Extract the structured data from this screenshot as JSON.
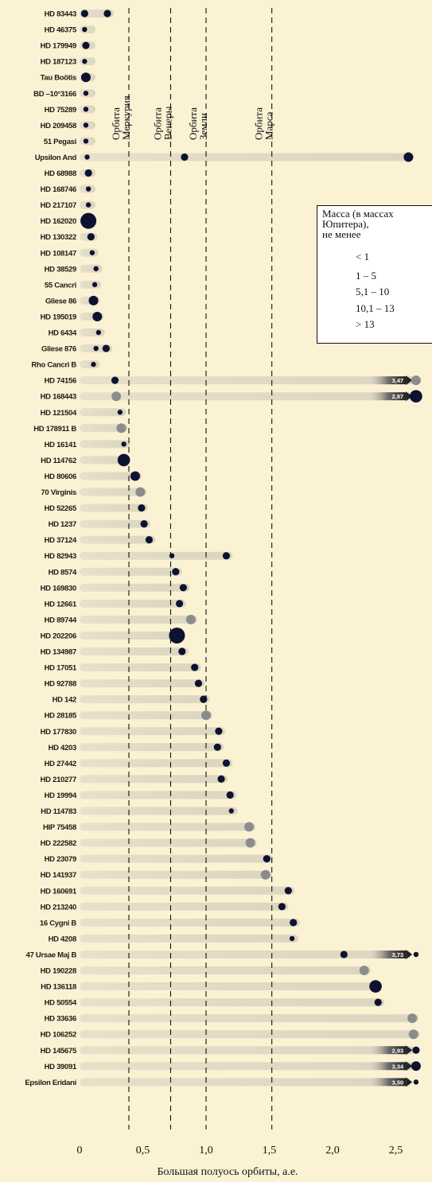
{
  "chart_data": {
    "type": "scatter",
    "xlabel": "Большая полуось орбиты, а.е.",
    "xlim": [
      0,
      2.7
    ],
    "xticks": [
      "0",
      "0,5",
      "1,0",
      "1,5",
      "2,0",
      "2,5"
    ],
    "xtick_values": [
      0,
      0.5,
      1.0,
      1.5,
      2.0,
      2.5
    ],
    "grid": false,
    "legend_position": "right",
    "colors": {
      "background": "#fbf2d4",
      "dark_point": "#0d1230",
      "gray_point": "#8c8c8c",
      "band": "#d8d2c0"
    },
    "orbits": [
      {
        "name": "Орбита Меркурия",
        "line1": "Орбита",
        "line2": "Меркурия",
        "x": 0.39
      },
      {
        "name": "Орбита Венеры",
        "line1": "Орбита",
        "line2": "Венеры",
        "x": 0.72
      },
      {
        "name": "Орбита Земли",
        "line1": "Орбита",
        "line2": "Земли",
        "x": 1.0
      },
      {
        "name": "Орбита Марса",
        "line1": "Орбита",
        "line2": "Марса",
        "x": 1.52
      }
    ],
    "legend": {
      "title": "Масса (в массах Юпитера), не менее",
      "title_line1": "Масса (в массах",
      "title_line2": "Юпитера),",
      "title_line3": "не менее",
      "items": [
        "< 1",
        "1 – 5",
        "5,1 – 10",
        "10,1 – 13",
        "> 13"
      ]
    },
    "stars": [
      {
        "name": "HD 83443",
        "planets": [
          {
            "a": 0.04,
            "m": 1,
            "c": "d"
          },
          {
            "a": 0.22,
            "m": 1,
            "c": "d"
          }
        ]
      },
      {
        "name": "HD 46375",
        "planets": [
          {
            "a": 0.04,
            "m": 0,
            "c": "d"
          }
        ]
      },
      {
        "name": "HD 179949",
        "planets": [
          {
            "a": 0.05,
            "m": 1,
            "c": "d"
          }
        ]
      },
      {
        "name": "HD 187123",
        "planets": [
          {
            "a": 0.04,
            "m": 0,
            "c": "d"
          }
        ]
      },
      {
        "name": "Tau Boötis",
        "planets": [
          {
            "a": 0.05,
            "m": 2,
            "c": "d"
          }
        ]
      },
      {
        "name": "BD –10°3166",
        "planets": [
          {
            "a": 0.05,
            "m": 0,
            "c": "d"
          }
        ]
      },
      {
        "name": "HD 75289",
        "planets": [
          {
            "a": 0.05,
            "m": 0,
            "c": "d"
          }
        ]
      },
      {
        "name": "HD 209458",
        "planets": [
          {
            "a": 0.05,
            "m": 0,
            "c": "d"
          }
        ]
      },
      {
        "name": "51 Pegasi",
        "planets": [
          {
            "a": 0.05,
            "m": 0,
            "c": "d"
          }
        ]
      },
      {
        "name": "Upsilon And",
        "band": 2.6,
        "planets": [
          {
            "a": 0.06,
            "m": 0,
            "c": "d"
          },
          {
            "a": 0.83,
            "m": 1,
            "c": "d"
          },
          {
            "a": 2.6,
            "m": 2,
            "c": "d"
          }
        ]
      },
      {
        "name": "HD 68988",
        "planets": [
          {
            "a": 0.07,
            "m": 1,
            "c": "d"
          }
        ]
      },
      {
        "name": "HD 168746",
        "planets": [
          {
            "a": 0.07,
            "m": 0,
            "c": "d"
          }
        ]
      },
      {
        "name": "HD 217107",
        "planets": [
          {
            "a": 0.07,
            "m": 0,
            "c": "d"
          }
        ]
      },
      {
        "name": "HD 162020",
        "planets": [
          {
            "a": 0.07,
            "m": 4,
            "c": "d"
          }
        ]
      },
      {
        "name": "HD 130322",
        "planets": [
          {
            "a": 0.09,
            "m": 1,
            "c": "d"
          }
        ]
      },
      {
        "name": "HD 108147",
        "planets": [
          {
            "a": 0.1,
            "m": 0,
            "c": "d"
          }
        ]
      },
      {
        "name": "HD 38529",
        "planets": [
          {
            "a": 0.13,
            "m": 0,
            "c": "d"
          }
        ]
      },
      {
        "name": "55 Cancri",
        "planets": [
          {
            "a": 0.12,
            "m": 0,
            "c": "d"
          }
        ]
      },
      {
        "name": "Gliese 86",
        "planets": [
          {
            "a": 0.11,
            "m": 2,
            "c": "d"
          }
        ]
      },
      {
        "name": "HD 195019",
        "planets": [
          {
            "a": 0.14,
            "m": 2,
            "c": "d"
          }
        ]
      },
      {
        "name": "HD 6434",
        "planets": [
          {
            "a": 0.15,
            "m": 0,
            "c": "d"
          }
        ]
      },
      {
        "name": "Gliese 876",
        "planets": [
          {
            "a": 0.13,
            "m": 0,
            "c": "d"
          },
          {
            "a": 0.21,
            "m": 1,
            "c": "d"
          }
        ]
      },
      {
        "name": "Rho Cancri B",
        "planets": [
          {
            "a": 0.11,
            "m": 0,
            "c": "d"
          }
        ]
      },
      {
        "name": "HD 74156",
        "band": 2.66,
        "arrow": "3,47",
        "planets": [
          {
            "a": 0.28,
            "m": 1,
            "c": "d"
          },
          {
            "a": 2.66,
            "m": 2,
            "c": "g"
          }
        ]
      },
      {
        "name": "HD 168443",
        "band": 2.66,
        "arrow": "2,87",
        "planets": [
          {
            "a": 0.29,
            "m": 2,
            "c": "g"
          },
          {
            "a": 2.66,
            "m": 3,
            "c": "d"
          }
        ]
      },
      {
        "name": "HD 121504",
        "planets": [
          {
            "a": 0.32,
            "m": 0,
            "c": "d"
          }
        ]
      },
      {
        "name": "HD 178911 B",
        "planets": [
          {
            "a": 0.33,
            "m": 2,
            "c": "g"
          }
        ]
      },
      {
        "name": "HD 16141",
        "planets": [
          {
            "a": 0.35,
            "m": 0,
            "c": "d"
          }
        ]
      },
      {
        "name": "HD 114762",
        "planets": [
          {
            "a": 0.35,
            "m": 3,
            "c": "d"
          }
        ]
      },
      {
        "name": "HD 80606",
        "planets": [
          {
            "a": 0.44,
            "m": 2,
            "c": "d"
          }
        ]
      },
      {
        "name": "70 Virginis",
        "planets": [
          {
            "a": 0.48,
            "m": 2,
            "c": "g"
          }
        ]
      },
      {
        "name": "HD 52265",
        "planets": [
          {
            "a": 0.49,
            "m": 1,
            "c": "d"
          }
        ]
      },
      {
        "name": "HD 1237",
        "planets": [
          {
            "a": 0.51,
            "m": 1,
            "c": "d"
          }
        ]
      },
      {
        "name": "HD 37124",
        "planets": [
          {
            "a": 0.55,
            "m": 1,
            "c": "d"
          }
        ]
      },
      {
        "name": "HD 82943",
        "planets": [
          {
            "a": 0.73,
            "m": 0,
            "c": "d"
          },
          {
            "a": 1.16,
            "m": 1,
            "c": "d"
          }
        ]
      },
      {
        "name": "HD 8574",
        "planets": [
          {
            "a": 0.76,
            "m": 1,
            "c": "d"
          }
        ]
      },
      {
        "name": "HD 169830",
        "planets": [
          {
            "a": 0.82,
            "m": 1,
            "c": "d"
          }
        ]
      },
      {
        "name": "HD 12661",
        "planets": [
          {
            "a": 0.79,
            "m": 1,
            "c": "d"
          }
        ]
      },
      {
        "name": "HD 89744",
        "planets": [
          {
            "a": 0.88,
            "m": 2,
            "c": "g"
          }
        ]
      },
      {
        "name": "HD 202206",
        "planets": [
          {
            "a": 0.77,
            "m": 4,
            "c": "d"
          }
        ]
      },
      {
        "name": "HD 134987",
        "planets": [
          {
            "a": 0.81,
            "m": 1,
            "c": "d"
          }
        ]
      },
      {
        "name": "HD 17051",
        "planets": [
          {
            "a": 0.91,
            "m": 1,
            "c": "d"
          }
        ]
      },
      {
        "name": "HD 92788",
        "planets": [
          {
            "a": 0.94,
            "m": 1,
            "c": "d"
          }
        ]
      },
      {
        "name": "HD 142",
        "planets": [
          {
            "a": 0.98,
            "m": 1,
            "c": "d"
          }
        ]
      },
      {
        "name": "HD 28185",
        "planets": [
          {
            "a": 1.0,
            "m": 2,
            "c": "g"
          }
        ]
      },
      {
        "name": "HD 177830",
        "planets": [
          {
            "a": 1.1,
            "m": 1,
            "c": "d"
          }
        ]
      },
      {
        "name": "HD 4203",
        "planets": [
          {
            "a": 1.09,
            "m": 1,
            "c": "d"
          }
        ]
      },
      {
        "name": "HD 27442",
        "planets": [
          {
            "a": 1.16,
            "m": 1,
            "c": "d"
          }
        ]
      },
      {
        "name": "HD 210277",
        "planets": [
          {
            "a": 1.12,
            "m": 1,
            "c": "d"
          }
        ]
      },
      {
        "name": "HD 19994",
        "planets": [
          {
            "a": 1.19,
            "m": 1,
            "c": "d"
          }
        ]
      },
      {
        "name": "HD 114783",
        "planets": [
          {
            "a": 1.2,
            "m": 0,
            "c": "d"
          }
        ]
      },
      {
        "name": "HIP 75458",
        "planets": [
          {
            "a": 1.34,
            "m": 2,
            "c": "g"
          }
        ]
      },
      {
        "name": "HD 222582",
        "planets": [
          {
            "a": 1.35,
            "m": 2,
            "c": "g"
          }
        ]
      },
      {
        "name": "HD 23079",
        "planets": [
          {
            "a": 1.48,
            "m": 1,
            "c": "d"
          }
        ]
      },
      {
        "name": "HD 141937",
        "planets": [
          {
            "a": 1.47,
            "m": 2,
            "c": "g"
          }
        ]
      },
      {
        "name": "HD 160691",
        "planets": [
          {
            "a": 1.65,
            "m": 1,
            "c": "d"
          }
        ]
      },
      {
        "name": "HD 213240",
        "planets": [
          {
            "a": 1.6,
            "m": 1,
            "c": "d"
          }
        ]
      },
      {
        "name": "16 Cygni B",
        "planets": [
          {
            "a": 1.69,
            "m": 1,
            "c": "d"
          }
        ]
      },
      {
        "name": "HD 4208",
        "planets": [
          {
            "a": 1.68,
            "m": 0,
            "c": "d"
          }
        ]
      },
      {
        "name": "47 Ursae Maj B",
        "band": 2.62,
        "arrow": "3,73",
        "planets": [
          {
            "a": 2.09,
            "m": 1,
            "c": "d"
          },
          {
            "a": 2.66,
            "m": 0,
            "c": "d"
          }
        ]
      },
      {
        "name": "HD 190228",
        "planets": [
          {
            "a": 2.25,
            "m": 2,
            "c": "g"
          }
        ]
      },
      {
        "name": "HD 136118",
        "planets": [
          {
            "a": 2.34,
            "m": 3,
            "c": "d"
          }
        ]
      },
      {
        "name": "HD 50554",
        "planets": [
          {
            "a": 2.36,
            "m": 1,
            "c": "d"
          }
        ]
      },
      {
        "name": "HD 33636",
        "planets": [
          {
            "a": 2.63,
            "m": 2,
            "c": "g"
          }
        ]
      },
      {
        "name": "HD 106252",
        "planets": [
          {
            "a": 2.64,
            "m": 2,
            "c": "g"
          }
        ]
      },
      {
        "name": "HD 145675",
        "band": 2.65,
        "arrow": "2,93",
        "planets": [
          {
            "a": 2.66,
            "m": 1,
            "c": "d"
          }
        ]
      },
      {
        "name": "HD 39091",
        "band": 2.65,
        "arrow": "3,34",
        "planets": [
          {
            "a": 2.66,
            "m": 2,
            "c": "d"
          }
        ]
      },
      {
        "name": "Epsilon Eridani",
        "band": 2.62,
        "arrow": "3,50",
        "planets": [
          {
            "a": 2.66,
            "m": 0,
            "c": "d"
          }
        ]
      }
    ]
  }
}
